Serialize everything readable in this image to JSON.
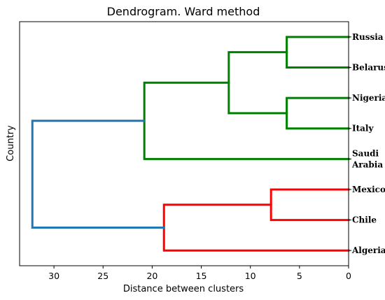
{
  "chart_data": {
    "type": "dendrogram",
    "title": "Dendrogram. Ward method",
    "xlabel": "Distance between clusters",
    "ylabel": "Country",
    "orientation": "left",
    "xlim": [
      33.5,
      0
    ],
    "xticks": [
      30,
      25,
      20,
      15,
      10,
      5,
      0
    ],
    "leaves": [
      [
        "Russia"
      ],
      [
        "Belarus"
      ],
      [
        "Nigeria"
      ],
      [
        "Italy"
      ],
      [
        "Saudi",
        "Arabia"
      ],
      [
        "Mexico"
      ],
      [
        "Chile"
      ],
      [
        "Algeria"
      ]
    ],
    "merges": [
      {
        "id": "m1",
        "children": [
          "L0",
          "L1"
        ],
        "distance": 6.3,
        "color": "#008000"
      },
      {
        "id": "m2",
        "children": [
          "L2",
          "L3"
        ],
        "distance": 6.3,
        "color": "#008000"
      },
      {
        "id": "m3",
        "children": [
          "m1",
          "m2"
        ],
        "distance": 12.2,
        "color": "#008000"
      },
      {
        "id": "m4",
        "children": [
          "m3",
          "L4"
        ],
        "distance": 20.8,
        "color": "#008000"
      },
      {
        "id": "m5",
        "children": [
          "L5",
          "L6"
        ],
        "distance": 7.9,
        "color": "#ff0000"
      },
      {
        "id": "m6",
        "children": [
          "m5",
          "L7"
        ],
        "distance": 18.8,
        "color": "#ff0000"
      },
      {
        "id": "m7",
        "children": [
          "m4",
          "m6"
        ],
        "distance": 32.2,
        "color": "#1f77b4"
      }
    ],
    "cluster_colors": {
      "cluster_1": "#008000",
      "cluster_2": "#ff0000",
      "above_threshold": "#1f77b4"
    }
  }
}
